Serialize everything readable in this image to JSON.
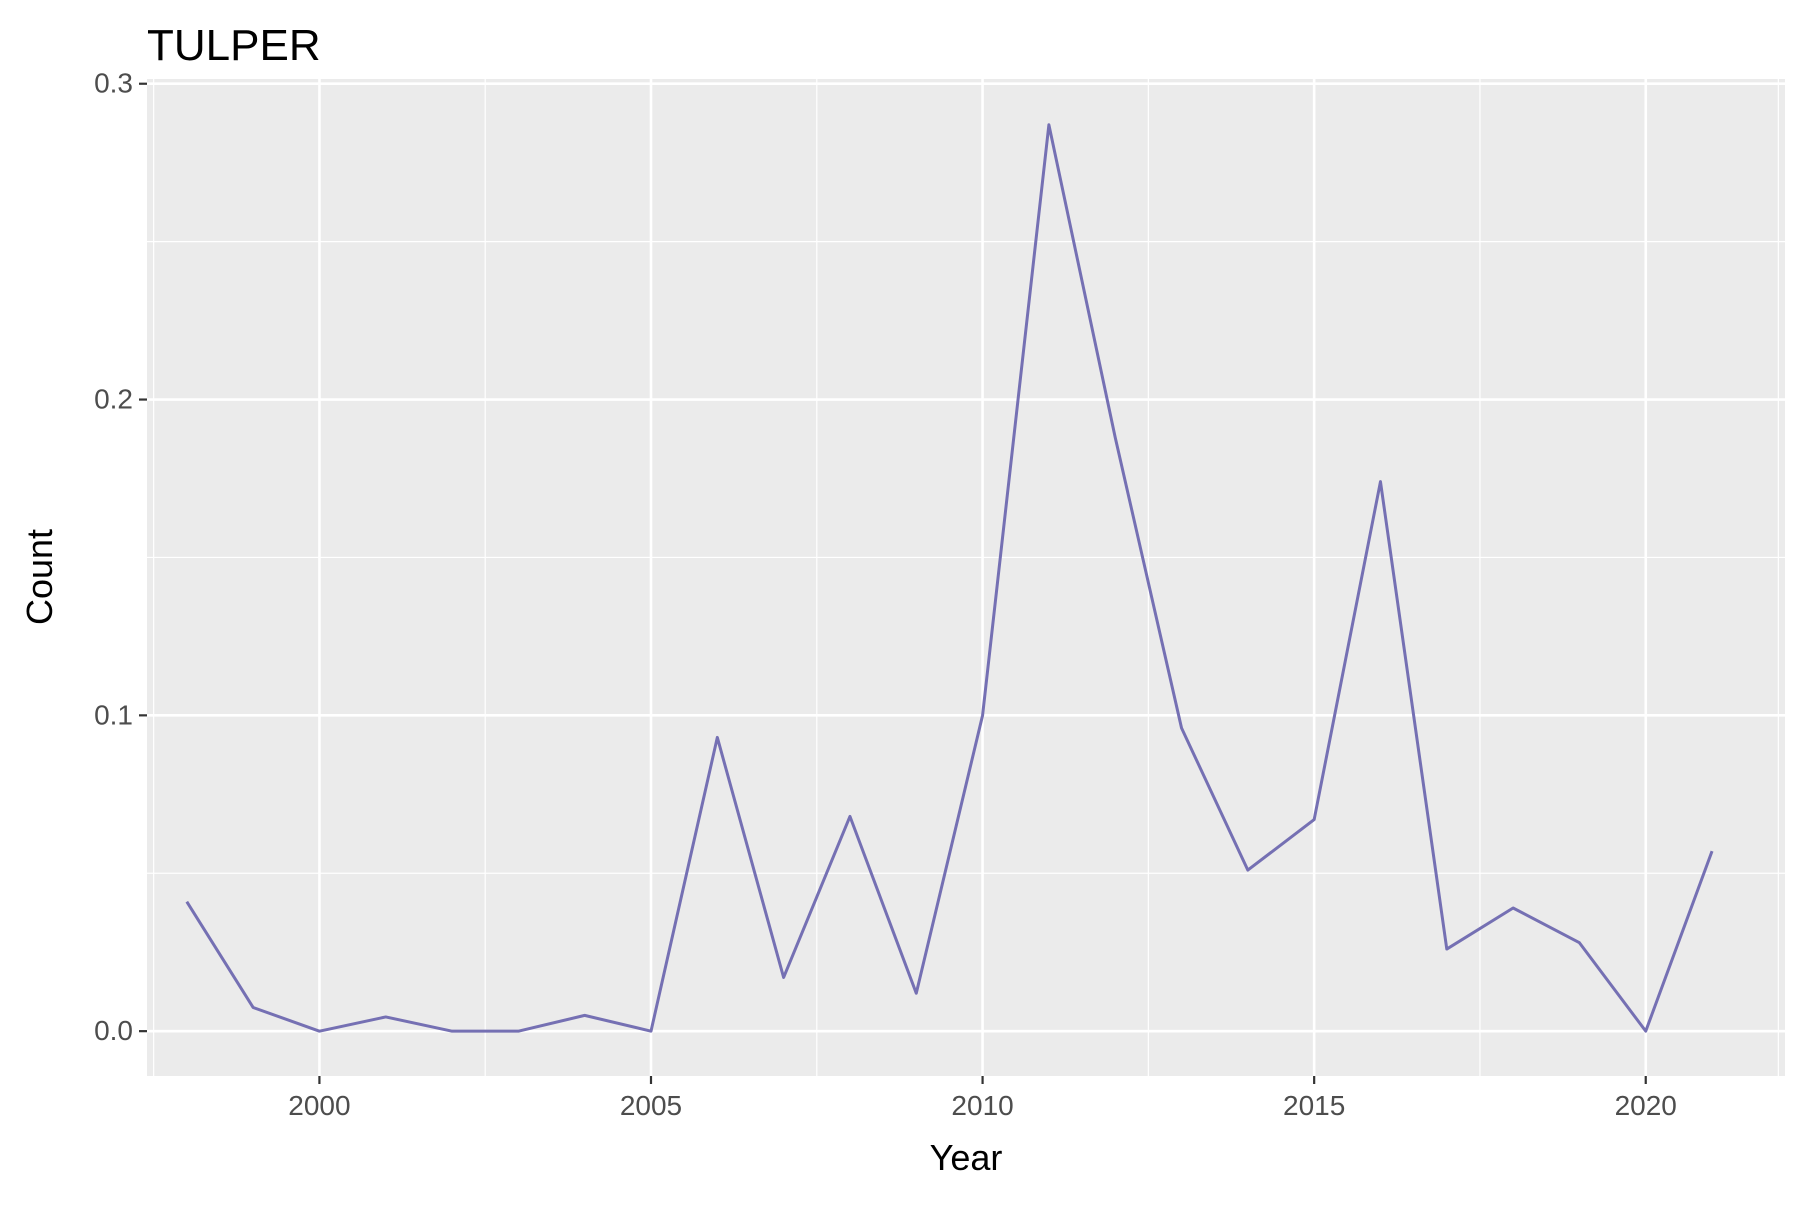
{
  "chart_data": {
    "type": "line",
    "title": "TULPER",
    "xlabel": "Year",
    "ylabel": "Count",
    "xlim": [
      1997.4,
      2022.1
    ],
    "ylim": [
      -0.0142,
      0.3015
    ],
    "x_ticks": [
      2000,
      2005,
      2010,
      2015,
      2020
    ],
    "x_tick_labels": [
      "2000",
      "2005",
      "2010",
      "2015",
      "2020"
    ],
    "y_ticks": [
      0.0,
      0.1,
      0.2,
      0.3
    ],
    "y_tick_labels": [
      "0.0",
      "0.1",
      "0.2",
      "0.3"
    ],
    "x_minor_ticks": [
      1997.5,
      2002.5,
      2007.5,
      2012.5,
      2017.5,
      2022.0
    ],
    "y_minor_ticks": [
      0.05,
      0.15,
      0.25
    ],
    "grid": true,
    "panel_background": "#EBEBEB",
    "series": [
      {
        "color": "#7570B3",
        "x": [
          1998,
          1999,
          2000,
          2001,
          2002,
          2003,
          2004,
          2005,
          2006,
          2007,
          2008,
          2009,
          2010,
          2011,
          2012,
          2013,
          2014,
          2015,
          2016,
          2017,
          2018,
          2019,
          2020,
          2021
        ],
        "y": [
          0.041,
          0.0075,
          0.0,
          0.0045,
          0.0,
          0.0,
          0.005,
          0.0,
          0.093,
          0.017,
          0.068,
          0.012,
          0.1,
          0.287,
          0.188,
          0.096,
          0.051,
          0.067,
          0.174,
          0.026,
          0.039,
          0.028,
          0.0,
          0.057
        ]
      }
    ]
  }
}
